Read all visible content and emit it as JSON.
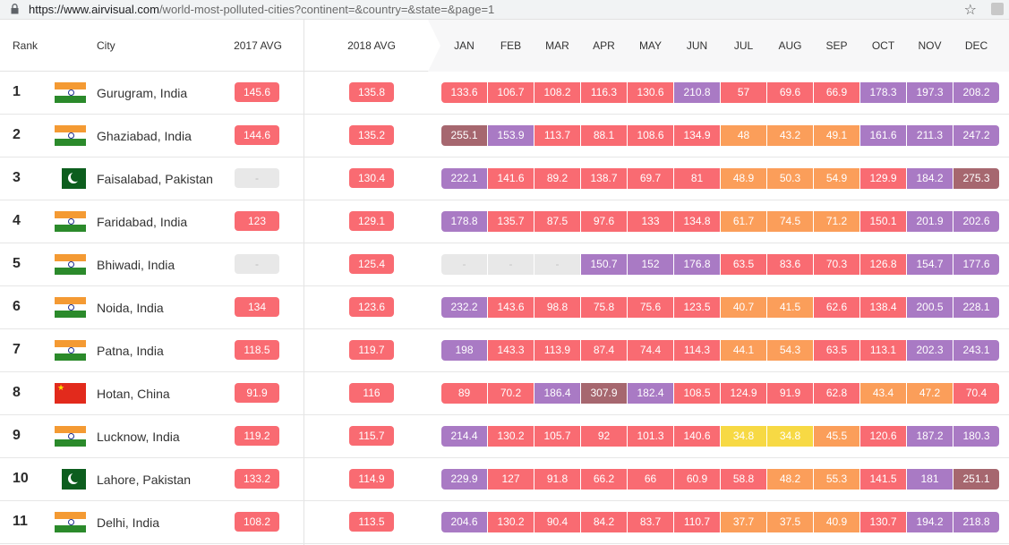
{
  "browser": {
    "url_host": "https://www.airvisual.com",
    "url_rest": "/world-most-polluted-cities?continent=&country=&state=&page=1"
  },
  "colors": {
    "red": "#f96b72",
    "purple": "#a97ac4",
    "maroon": "#a6676f",
    "orange": "#fb9e5a",
    "yellow": "#f7d944",
    "grey": "#e8e8e8"
  },
  "header": {
    "rank": "Rank",
    "city": "City",
    "avg2017": "2017 AVG",
    "avg2018": "2018 AVG",
    "months": [
      "JAN",
      "FEB",
      "MAR",
      "APR",
      "MAY",
      "JUN",
      "JUL",
      "AUG",
      "SEP",
      "OCT",
      "NOV",
      "DEC"
    ]
  },
  "rows": [
    {
      "rank": "1",
      "flag": "india-flag",
      "city": "Gurugram, India",
      "avg2017": "145.6",
      "c2017": "red",
      "avg2018": "135.8",
      "c2018": "red",
      "months": [
        "133.6",
        "106.7",
        "108.2",
        "116.3",
        "130.6",
        "210.8",
        "57",
        "69.6",
        "66.9",
        "178.3",
        "197.3",
        "208.2"
      ],
      "colors": [
        "red",
        "red",
        "red",
        "red",
        "red",
        "purple",
        "red",
        "red",
        "red",
        "purple",
        "purple",
        "purple"
      ]
    },
    {
      "rank": "2",
      "flag": "india-flag",
      "city": "Ghaziabad, India",
      "avg2017": "144.6",
      "c2017": "red",
      "avg2018": "135.2",
      "c2018": "red",
      "months": [
        "255.1",
        "153.9",
        "113.7",
        "88.1",
        "108.6",
        "134.9",
        "48",
        "43.2",
        "49.1",
        "161.6",
        "211.3",
        "247.2"
      ],
      "colors": [
        "maroon",
        "purple",
        "red",
        "red",
        "red",
        "red",
        "orange",
        "orange",
        "orange",
        "purple",
        "purple",
        "purple"
      ]
    },
    {
      "rank": "3",
      "flag": "pakistan-flag",
      "city": "Faisalabad, Pakistan",
      "avg2017": "-",
      "c2017": "grey",
      "avg2018": "130.4",
      "c2018": "red",
      "months": [
        "222.1",
        "141.6",
        "89.2",
        "138.7",
        "69.7",
        "81",
        "48.9",
        "50.3",
        "54.9",
        "129.9",
        "184.2",
        "275.3"
      ],
      "colors": [
        "purple",
        "red",
        "red",
        "red",
        "red",
        "red",
        "orange",
        "orange",
        "orange",
        "red",
        "purple",
        "maroon"
      ]
    },
    {
      "rank": "4",
      "flag": "india-flag",
      "city": "Faridabad, India",
      "avg2017": "123",
      "c2017": "red",
      "avg2018": "129.1",
      "c2018": "red",
      "months": [
        "178.8",
        "135.7",
        "87.5",
        "97.6",
        "133",
        "134.8",
        "61.7",
        "74.5",
        "71.2",
        "150.1",
        "201.9",
        "202.6"
      ],
      "colors": [
        "purple",
        "red",
        "red",
        "red",
        "red",
        "red",
        "orange",
        "orange",
        "orange",
        "red",
        "purple",
        "purple"
      ]
    },
    {
      "rank": "5",
      "flag": "india-flag",
      "city": "Bhiwadi, India",
      "avg2017": "-",
      "c2017": "grey",
      "avg2018": "125.4",
      "c2018": "red",
      "months": [
        "-",
        "-",
        "-",
        "150.7",
        "152",
        "176.8",
        "63.5",
        "83.6",
        "70.3",
        "126.8",
        "154.7",
        "177.6"
      ],
      "colors": [
        "grey",
        "grey",
        "grey",
        "purple",
        "purple",
        "purple",
        "red",
        "red",
        "red",
        "red",
        "purple",
        "purple"
      ]
    },
    {
      "rank": "6",
      "flag": "india-flag",
      "city": "Noida, India",
      "avg2017": "134",
      "c2017": "red",
      "avg2018": "123.6",
      "c2018": "red",
      "months": [
        "232.2",
        "143.6",
        "98.8",
        "75.8",
        "75.6",
        "123.5",
        "40.7",
        "41.5",
        "62.6",
        "138.4",
        "200.5",
        "228.1"
      ],
      "colors": [
        "purple",
        "red",
        "red",
        "red",
        "red",
        "red",
        "orange",
        "orange",
        "red",
        "red",
        "purple",
        "purple"
      ]
    },
    {
      "rank": "7",
      "flag": "india-flag",
      "city": "Patna, India",
      "avg2017": "118.5",
      "c2017": "red",
      "avg2018": "119.7",
      "c2018": "red",
      "months": [
        "198",
        "143.3",
        "113.9",
        "87.4",
        "74.4",
        "114.3",
        "44.1",
        "54.3",
        "63.5",
        "113.1",
        "202.3",
        "243.1"
      ],
      "colors": [
        "purple",
        "red",
        "red",
        "red",
        "red",
        "red",
        "orange",
        "orange",
        "red",
        "red",
        "purple",
        "purple"
      ]
    },
    {
      "rank": "8",
      "flag": "china-flag",
      "city": "Hotan, China",
      "avg2017": "91.9",
      "c2017": "red",
      "avg2018": "116",
      "c2018": "red",
      "months": [
        "89",
        "70.2",
        "186.4",
        "307.9",
        "182.4",
        "108.5",
        "124.9",
        "91.9",
        "62.8",
        "43.4",
        "47.2",
        "70.4"
      ],
      "colors": [
        "red",
        "red",
        "purple",
        "maroon",
        "purple",
        "red",
        "red",
        "red",
        "red",
        "orange",
        "orange",
        "red"
      ]
    },
    {
      "rank": "9",
      "flag": "india-flag",
      "city": "Lucknow, India",
      "avg2017": "119.2",
      "c2017": "red",
      "avg2018": "115.7",
      "c2018": "red",
      "months": [
        "214.4",
        "130.2",
        "105.7",
        "92",
        "101.3",
        "140.6",
        "34.8",
        "34.8",
        "45.5",
        "120.6",
        "187.2",
        "180.3"
      ],
      "colors": [
        "purple",
        "red",
        "red",
        "red",
        "red",
        "red",
        "yellow",
        "yellow",
        "orange",
        "red",
        "purple",
        "purple"
      ]
    },
    {
      "rank": "10",
      "flag": "pakistan-flag",
      "city": "Lahore, Pakistan",
      "avg2017": "133.2",
      "c2017": "red",
      "avg2018": "114.9",
      "c2018": "red",
      "months": [
        "229.9",
        "127",
        "91.8",
        "66.2",
        "66",
        "60.9",
        "58.8",
        "48.2",
        "55.3",
        "141.5",
        "181",
        "251.1"
      ],
      "colors": [
        "purple",
        "red",
        "red",
        "red",
        "red",
        "red",
        "red",
        "orange",
        "orange",
        "red",
        "purple",
        "maroon"
      ]
    },
    {
      "rank": "11",
      "flag": "india-flag",
      "city": "Delhi, India",
      "avg2017": "108.2",
      "c2017": "red",
      "avg2018": "113.5",
      "c2018": "red",
      "months": [
        "204.6",
        "130.2",
        "90.4",
        "84.2",
        "83.7",
        "110.7",
        "37.7",
        "37.5",
        "40.9",
        "130.7",
        "194.2",
        "218.8"
      ],
      "colors": [
        "purple",
        "red",
        "red",
        "red",
        "red",
        "red",
        "orange",
        "orange",
        "orange",
        "red",
        "purple",
        "purple"
      ]
    }
  ]
}
